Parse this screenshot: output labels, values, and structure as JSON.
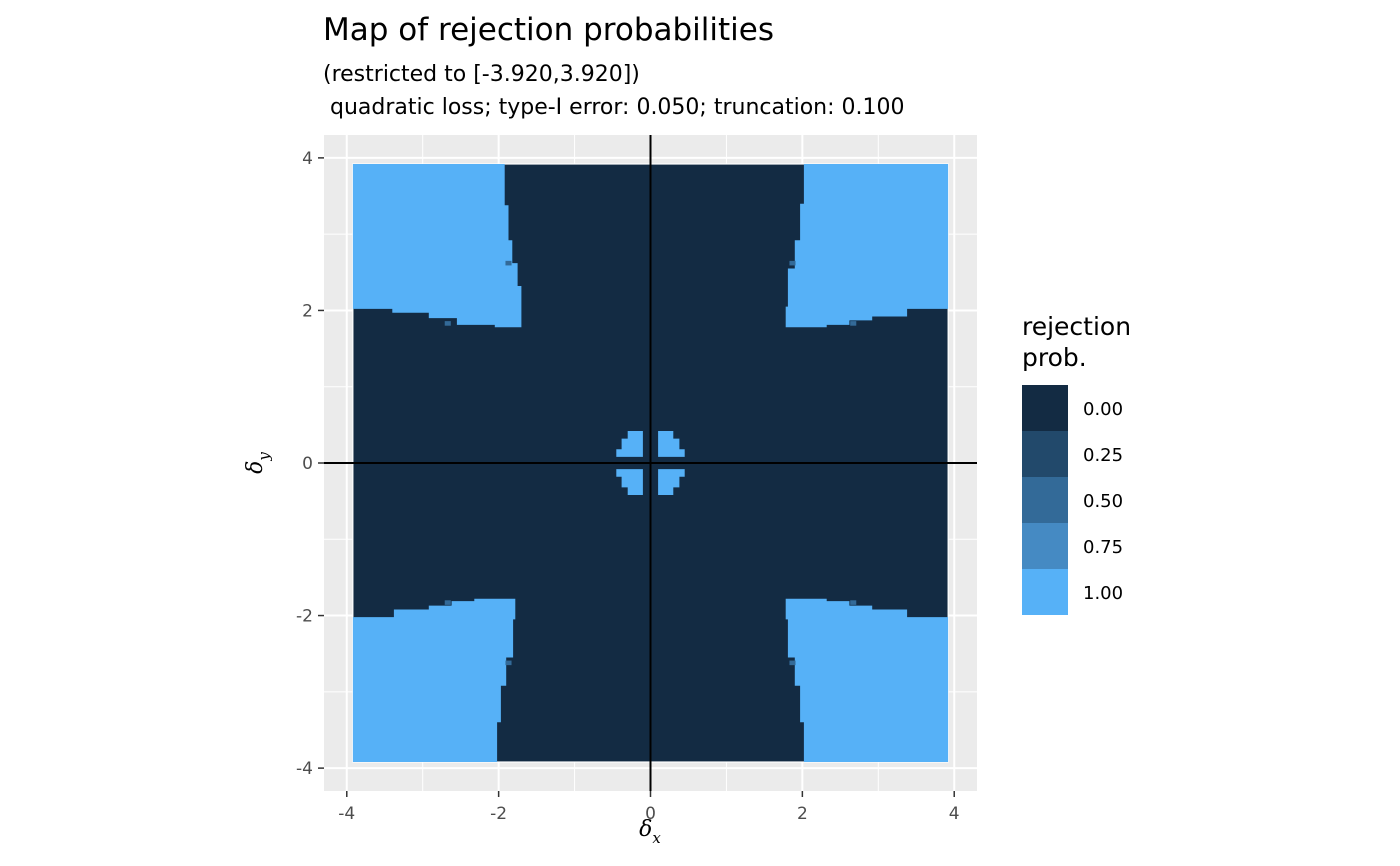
{
  "chart_data": {
    "type": "heatmap",
    "title": "Map of rejection probabilities",
    "subtitle_lines": [
      "(restricted to [-3.920,3.920])",
      " quadratic loss; type-I error: 0.050; truncation: 0.100"
    ],
    "xlabel": "δ",
    "xlabel_sub": "x",
    "ylabel": "δ",
    "ylabel_sub": "y",
    "xlim": [
      -4.3,
      4.3
    ],
    "ylim": [
      -4.3,
      4.3
    ],
    "xticks": [
      -4,
      -2,
      0,
      2,
      4
    ],
    "yticks": [
      -4,
      -2,
      0,
      2,
      4
    ],
    "xtick_labels": [
      "-4",
      "-2",
      "0",
      "2",
      "4"
    ],
    "ytick_labels": [
      "-4",
      "-2",
      "0",
      "2",
      "4"
    ],
    "grid": true,
    "data_range": [
      -3.92,
      3.92
    ],
    "background_value": 0.0,
    "legend": {
      "title_lines": [
        "rejection",
        "prob."
      ],
      "placement": "right",
      "levels": [
        {
          "label": "0.00",
          "value": 0.0,
          "color": "#132b43"
        },
        {
          "label": "0.25",
          "value": 0.25,
          "color": "#22496b"
        },
        {
          "label": "0.50",
          "value": 0.5,
          "color": "#336a98"
        },
        {
          "label": "0.75",
          "value": 0.75,
          "color": "#458ac3"
        },
        {
          "label": "1.00",
          "value": 1.0,
          "color": "#56b1f7"
        }
      ]
    },
    "rejection_regions": [
      {
        "name": "corner-top-left",
        "value": 1.0,
        "vertices": [
          [
            -3.92,
            3.92
          ],
          [
            -1.92,
            3.92
          ],
          [
            -1.92,
            3.38
          ],
          [
            -1.87,
            3.38
          ],
          [
            -1.87,
            2.92
          ],
          [
            -1.82,
            2.92
          ],
          [
            -1.82,
            2.62
          ],
          [
            -1.75,
            2.62
          ],
          [
            -1.75,
            2.32
          ],
          [
            -1.7,
            2.32
          ],
          [
            -1.7,
            1.78
          ],
          [
            -2.05,
            1.78
          ],
          [
            -2.05,
            1.81
          ],
          [
            -2.55,
            1.81
          ],
          [
            -2.55,
            1.9
          ],
          [
            -2.92,
            1.9
          ],
          [
            -2.92,
            1.97
          ],
          [
            -3.4,
            1.97
          ],
          [
            -3.4,
            2.02
          ],
          [
            -3.92,
            2.02
          ]
        ]
      },
      {
        "name": "corner-top-right",
        "value": 1.0,
        "vertices": [
          [
            3.92,
            3.92
          ],
          [
            2.02,
            3.92
          ],
          [
            2.02,
            3.4
          ],
          [
            1.97,
            3.4
          ],
          [
            1.97,
            2.92
          ],
          [
            1.9,
            2.92
          ],
          [
            1.9,
            2.55
          ],
          [
            1.81,
            2.55
          ],
          [
            1.81,
            2.05
          ],
          [
            1.78,
            2.05
          ],
          [
            1.78,
            1.78
          ],
          [
            2.32,
            1.78
          ],
          [
            2.32,
            1.81
          ],
          [
            2.62,
            1.81
          ],
          [
            2.62,
            1.87
          ],
          [
            2.92,
            1.87
          ],
          [
            2.92,
            1.92
          ],
          [
            3.38,
            1.92
          ],
          [
            3.38,
            2.02
          ],
          [
            3.92,
            2.02
          ]
        ]
      },
      {
        "name": "corner-bottom-left",
        "value": 1.0,
        "vertices": [
          [
            -3.92,
            -3.92
          ],
          [
            -2.02,
            -3.92
          ],
          [
            -2.02,
            -3.4
          ],
          [
            -1.97,
            -3.4
          ],
          [
            -1.97,
            -2.92
          ],
          [
            -1.9,
            -2.92
          ],
          [
            -1.9,
            -2.55
          ],
          [
            -1.81,
            -2.55
          ],
          [
            -1.81,
            -2.05
          ],
          [
            -1.78,
            -2.05
          ],
          [
            -1.78,
            -1.78
          ],
          [
            -2.32,
            -1.78
          ],
          [
            -2.32,
            -1.81
          ],
          [
            -2.62,
            -1.81
          ],
          [
            -2.62,
            -1.87
          ],
          [
            -2.92,
            -1.87
          ],
          [
            -2.92,
            -1.92
          ],
          [
            -3.38,
            -1.92
          ],
          [
            -3.38,
            -2.02
          ],
          [
            -3.92,
            -2.02
          ]
        ]
      },
      {
        "name": "corner-bottom-right",
        "value": 1.0,
        "vertices": [
          [
            3.92,
            -3.92
          ],
          [
            2.02,
            -3.92
          ],
          [
            2.02,
            -3.4
          ],
          [
            1.97,
            -3.4
          ],
          [
            1.97,
            -2.92
          ],
          [
            1.9,
            -2.92
          ],
          [
            1.9,
            -2.55
          ],
          [
            1.81,
            -2.55
          ],
          [
            1.81,
            -2.05
          ],
          [
            1.78,
            -2.05
          ],
          [
            1.78,
            -1.78
          ],
          [
            2.32,
            -1.78
          ],
          [
            2.32,
            -1.81
          ],
          [
            2.62,
            -1.81
          ],
          [
            2.62,
            -1.87
          ],
          [
            2.92,
            -1.87
          ],
          [
            2.92,
            -1.92
          ],
          [
            3.38,
            -1.92
          ],
          [
            3.38,
            -2.02
          ],
          [
            3.92,
            -2.02
          ]
        ]
      },
      {
        "name": "center-top-left",
        "value": 1.0,
        "vertices": [
          [
            -0.1,
            0.42
          ],
          [
            -0.1,
            0.08
          ],
          [
            -0.45,
            0.08
          ],
          [
            -0.45,
            0.18
          ],
          [
            -0.38,
            0.18
          ],
          [
            -0.38,
            0.32
          ],
          [
            -0.3,
            0.32
          ],
          [
            -0.3,
            0.42
          ]
        ]
      },
      {
        "name": "center-top-right",
        "value": 1.0,
        "vertices": [
          [
            0.1,
            0.42
          ],
          [
            0.1,
            0.08
          ],
          [
            0.45,
            0.08
          ],
          [
            0.45,
            0.18
          ],
          [
            0.38,
            0.18
          ],
          [
            0.38,
            0.32
          ],
          [
            0.3,
            0.32
          ],
          [
            0.3,
            0.42
          ]
        ]
      },
      {
        "name": "center-bottom-left",
        "value": 1.0,
        "vertices": [
          [
            -0.1,
            -0.42
          ],
          [
            -0.1,
            -0.08
          ],
          [
            -0.45,
            -0.08
          ],
          [
            -0.45,
            -0.18
          ],
          [
            -0.38,
            -0.18
          ],
          [
            -0.38,
            -0.32
          ],
          [
            -0.3,
            -0.32
          ],
          [
            -0.3,
            -0.42
          ]
        ]
      },
      {
        "name": "center-bottom-right",
        "value": 1.0,
        "vertices": [
          [
            0.1,
            -0.42
          ],
          [
            0.1,
            -0.08
          ],
          [
            0.45,
            -0.08
          ],
          [
            0.45,
            -0.18
          ],
          [
            0.38,
            -0.18
          ],
          [
            0.38,
            -0.32
          ],
          [
            0.3,
            -0.32
          ],
          [
            0.3,
            -0.42
          ]
        ]
      }
    ],
    "transition_cells": [
      {
        "x": -2.67,
        "y": 1.83,
        "value": 0.5
      },
      {
        "x": 2.67,
        "y": 1.83,
        "value": 0.5
      },
      {
        "x": -2.67,
        "y": -1.83,
        "value": 0.5
      },
      {
        "x": 2.67,
        "y": -1.83,
        "value": 0.5
      },
      {
        "x": 1.87,
        "y": 2.62,
        "value": 0.5
      },
      {
        "x": -1.87,
        "y": 2.62,
        "value": 0.5
      },
      {
        "x": 1.87,
        "y": -2.62,
        "value": 0.5
      },
      {
        "x": -1.87,
        "y": -2.62,
        "value": 0.5
      }
    ],
    "reference_lines": {
      "x": 0,
      "y": 0
    }
  }
}
